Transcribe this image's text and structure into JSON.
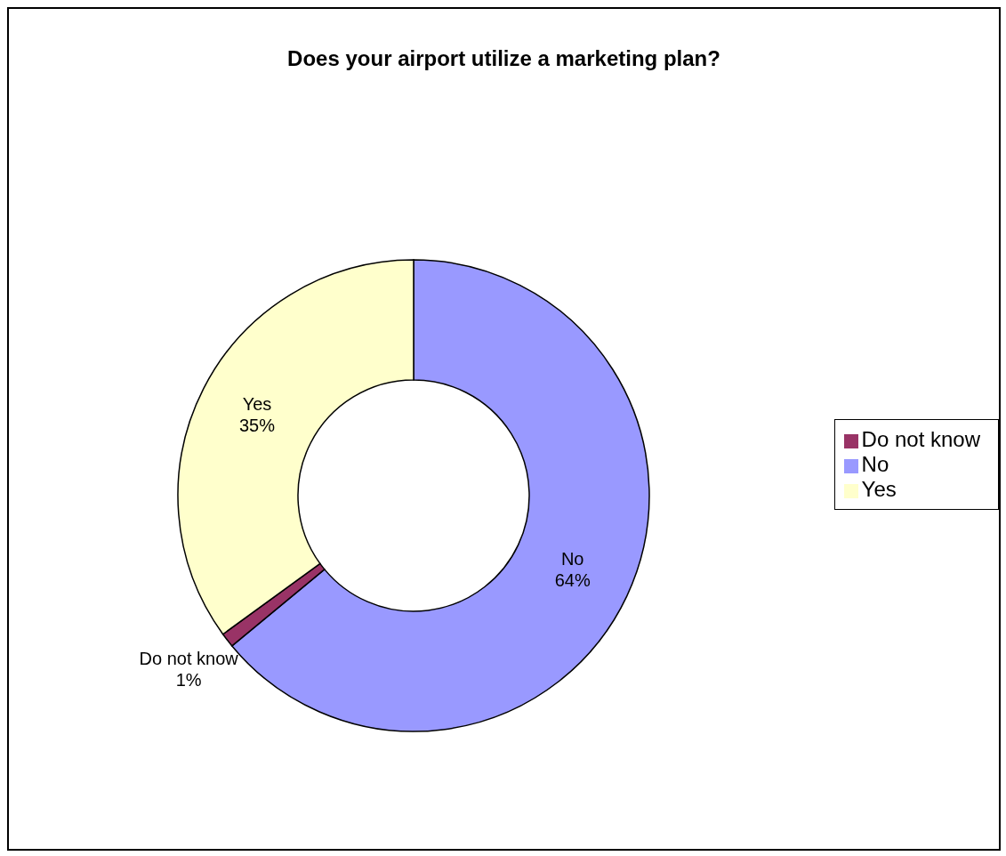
{
  "chart_data": {
    "type": "donut",
    "title": "Does your airport utilize a marketing plan?",
    "categories": [
      "No",
      "Do not know",
      "Yes"
    ],
    "values": [
      64,
      1,
      35
    ],
    "value_labels": [
      "64%",
      "1%",
      "35%"
    ],
    "colors": [
      "#9999ff",
      "#993366",
      "#ffffcc"
    ],
    "legend": "right"
  }
}
